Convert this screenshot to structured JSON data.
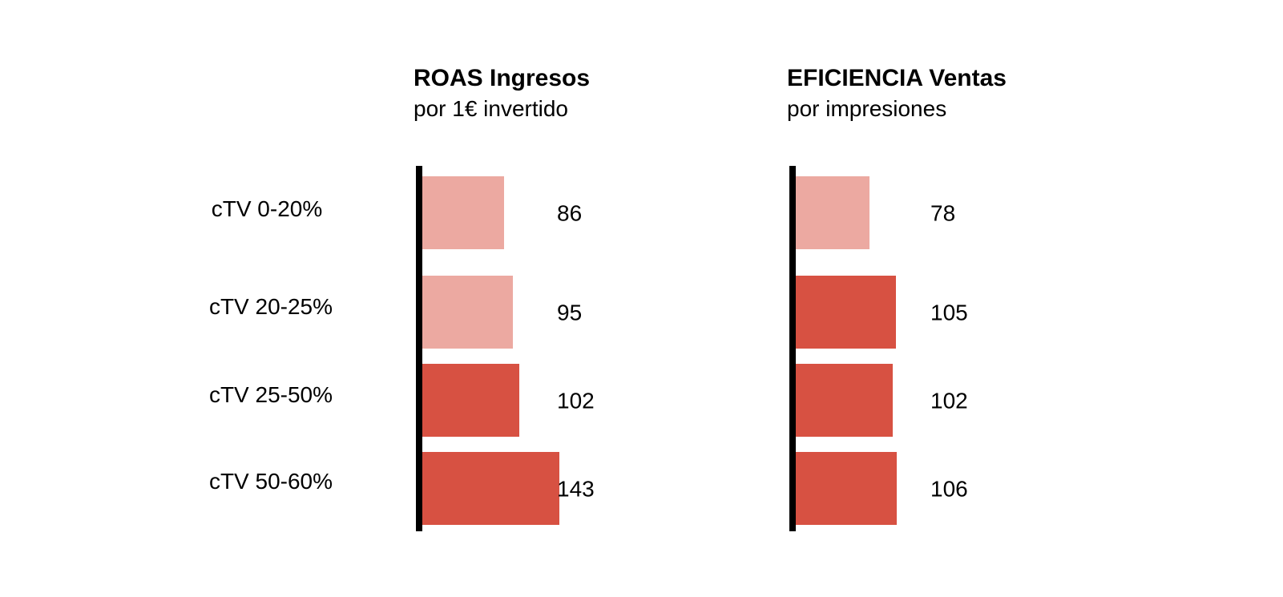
{
  "chart_data": {
    "type": "bar",
    "orientation": "horizontal",
    "categories": [
      "cTV 0-20%",
      "cTV 20-25%",
      "cTV 25-50%",
      "cTV 50-60%"
    ],
    "panels": [
      {
        "title": "ROAS Ingresos",
        "subtitle": "por 1€ invertido",
        "values": [
          86,
          95,
          102,
          143
        ]
      },
      {
        "title": "EFICIENCIA Ventas",
        "subtitle": "por impresiones",
        "values": [
          78,
          105,
          102,
          106
        ]
      }
    ],
    "colors": {
      "below_100": "#eca9a1",
      "above_100": "#d75142",
      "axis": "#000000"
    },
    "grid": false,
    "legend": "none"
  }
}
